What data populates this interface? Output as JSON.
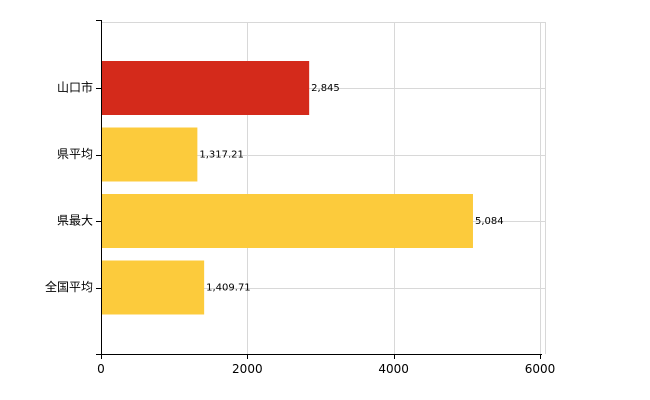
{
  "chart_data": {
    "type": "bar",
    "orientation": "horizontal",
    "categories": [
      "山口市",
      "県平均",
      "県最大",
      "全国平均"
    ],
    "values": [
      2845,
      1317.21,
      5084,
      1409.71
    ],
    "value_labels": [
      "2,845",
      "1,317.21",
      "5,084",
      "1,409.71"
    ],
    "colors": [
      "#d42a1b",
      "#fccb3c",
      "#fccb3c",
      "#fccb3c"
    ],
    "xlim": [
      0,
      6000
    ],
    "xticks": [
      0,
      2000,
      4000,
      6000
    ],
    "title": "",
    "xlabel": "",
    "ylabel": "",
    "grid": true,
    "legend": "none"
  }
}
